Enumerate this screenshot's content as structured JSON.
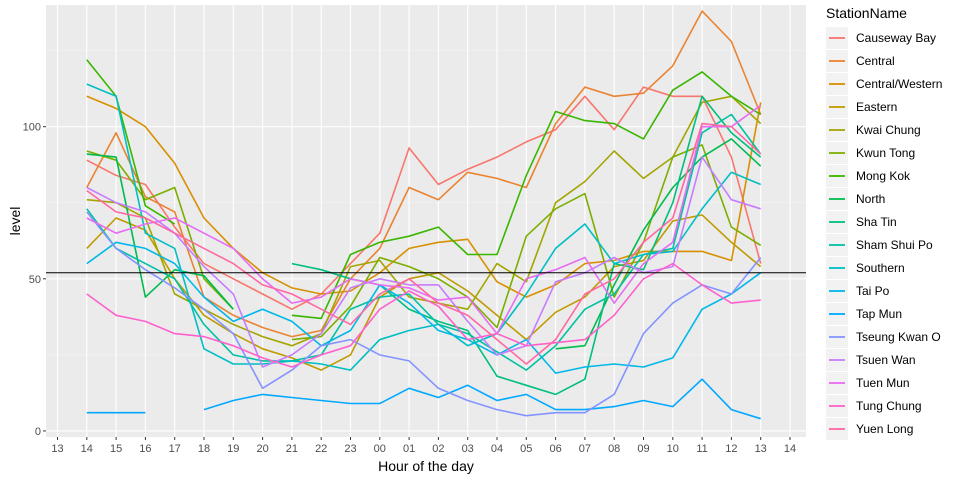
{
  "chart_data": {
    "type": "line",
    "xlabel": "Hour of the day",
    "ylabel": "level",
    "legend_title": "StationName",
    "legend_position": "right",
    "grid": true,
    "background": "#EBEBEB",
    "x_ticks": [
      "13",
      "14",
      "15",
      "16",
      "17",
      "18",
      "19",
      "20",
      "21",
      "22",
      "23",
      "00",
      "01",
      "02",
      "03",
      "04",
      "05",
      "06",
      "07",
      "08",
      "09",
      "10",
      "11",
      "12",
      "13",
      "14"
    ],
    "y_ticks": [
      0,
      50,
      100
    ],
    "ylim": [
      -2,
      140
    ],
    "reference_line": 52,
    "hours": [
      "14",
      "15",
      "16",
      "17",
      "18",
      "19",
      "20",
      "21",
      "22",
      "23",
      "00",
      "01",
      "02",
      "03",
      "04",
      "05",
      "06",
      "07",
      "08",
      "09",
      "10",
      "11",
      "12",
      "13"
    ],
    "series": [
      {
        "name": "Causeway Bay",
        "color": "#F8766D",
        "values": [
          89,
          84,
          81,
          67,
          55,
          50,
          45,
          40,
          45,
          55,
          65,
          93,
          81,
          86,
          90,
          95,
          99,
          110,
          99,
          113,
          110,
          110,
          90,
          55
        ]
      },
      {
        "name": "Central",
        "color": "#EA8331",
        "values": [
          80,
          98,
          77,
          72,
          44,
          38,
          34,
          31,
          33,
          50,
          60,
          80,
          76,
          85,
          83,
          80,
          101,
          113,
          110,
          111,
          120,
          138,
          128,
          104
        ]
      },
      {
        "name": "Central/Western",
        "color": "#D89000",
        "values": [
          110,
          106,
          100,
          88,
          70,
          60,
          52,
          47,
          45,
          46,
          52,
          60,
          62,
          63,
          49,
          44,
          48,
          55,
          56,
          59,
          59,
          59,
          56,
          108
        ]
      },
      {
        "name": "Eastern",
        "color": "#C09B00",
        "values": [
          60,
          70,
          66,
          50,
          38,
          32,
          27,
          24,
          20,
          25,
          44,
          50,
          52,
          46,
          38,
          30,
          39,
          44,
          54,
          56,
          69,
          71,
          62,
          54
        ]
      },
      {
        "name": "Kwai Chung",
        "color": "#A3A500",
        "values": [
          76,
          75,
          70,
          45,
          40,
          35,
          31,
          28,
          32,
          54,
          56,
          44,
          42,
          40,
          55,
          49,
          75,
          82,
          92,
          83,
          90,
          108,
          110,
          101
        ]
      },
      {
        "name": "Kwun Tong",
        "color": "#7CAE00",
        "values": [
          92,
          89,
          76,
          80,
          50,
          40,
          null,
          30,
          31,
          41,
          57,
          54,
          50,
          44,
          34,
          64,
          73,
          78,
          44,
          62,
          90,
          94,
          67,
          61
        ]
      },
      {
        "name": "Mong Kok",
        "color": "#39B600",
        "values": [
          122,
          110,
          74,
          68,
          null,
          null,
          null,
          38,
          37,
          58,
          62,
          64,
          67,
          58,
          58,
          84,
          105,
          102,
          101,
          96,
          112,
          118,
          110,
          104
        ]
      },
      {
        "name": "North",
        "color": "#00BB4E",
        "values": [
          91,
          90,
          44,
          53,
          51,
          40,
          null,
          null,
          null,
          null,
          null,
          null,
          null,
          null,
          null,
          null,
          27,
          28,
          48,
          66,
          80,
          90,
          96,
          87
        ]
      },
      {
        "name": "Sha Tin",
        "color": "#00BF7D",
        "values": [
          null,
          null,
          null,
          null,
          null,
          null,
          null,
          55,
          53,
          50,
          48,
          40,
          36,
          33,
          18,
          15,
          12,
          17,
          55,
          53,
          75,
          110,
          98,
          90
        ]
      },
      {
        "name": "Sham Shui Po",
        "color": "#00C1A3",
        "values": [
          73,
          60,
          55,
          50,
          35,
          25,
          23,
          23,
          25,
          40,
          44,
          45,
          35,
          32,
          26,
          20,
          28,
          40,
          45,
          58,
          60,
          98,
          104,
          91
        ]
      },
      {
        "name": "Southern",
        "color": "#00BFC4",
        "values": [
          114,
          110,
          65,
          60,
          27,
          22,
          22,
          23,
          22,
          20,
          30,
          33,
          35,
          28,
          32,
          45,
          60,
          68,
          55,
          58,
          59,
          73,
          85,
          81
        ]
      },
      {
        "name": "Tai Po",
        "color": "#00B8E7",
        "values": [
          55,
          62,
          60,
          55,
          44,
          36,
          40,
          36,
          28,
          33,
          48,
          42,
          33,
          30,
          25,
          30,
          19,
          21,
          22,
          21,
          24,
          40,
          45,
          52
        ]
      },
      {
        "name": "Tap Mun",
        "color": "#00A9FF",
        "values": [
          6,
          6,
          6,
          null,
          7,
          10,
          12,
          11,
          10,
          9,
          9,
          14,
          11,
          15,
          10,
          12,
          7,
          7,
          8,
          10,
          8,
          17,
          7,
          4
        ]
      },
      {
        "name": "Tseung Kwan O",
        "color": "#8494FF",
        "values": [
          72,
          60,
          53,
          47,
          40,
          32,
          14,
          20,
          28,
          30,
          25,
          23,
          14,
          10,
          7,
          5,
          6,
          6,
          12,
          32,
          42,
          48,
          45,
          57
        ]
      },
      {
        "name": "Tsuen Wan",
        "color": "#C77CFF",
        "values": [
          80,
          75,
          72,
          65,
          54,
          45,
          21,
          25,
          32,
          47,
          50,
          48,
          48,
          36,
          25,
          28,
          49,
          52,
          57,
          52,
          54,
          90,
          76,
          73
        ]
      },
      {
        "name": "Tuen Mun",
        "color": "#E76BF3",
        "values": [
          70,
          65,
          68,
          70,
          65,
          60,
          50,
          42,
          44,
          50,
          48,
          47,
          43,
          44,
          32,
          50,
          53,
          57,
          42,
          55,
          62,
          100,
          100,
          107
        ]
      },
      {
        "name": "Tung Chung",
        "color": "#FF61CC",
        "values": [
          45,
          38,
          36,
          32,
          31,
          28,
          24,
          21,
          25,
          28,
          40,
          46,
          41,
          30,
          32,
          28,
          29,
          30,
          38,
          50,
          55,
          48,
          42,
          43
        ]
      },
      {
        "name": "Yuen Long",
        "color": "#FF67A4",
        "values": [
          79,
          72,
          70,
          65,
          60,
          55,
          48,
          45,
          40,
          35,
          45,
          50,
          42,
          38,
          30,
          22,
          30,
          45,
          50,
          62,
          70,
          101,
          100,
          91
        ]
      }
    ]
  }
}
